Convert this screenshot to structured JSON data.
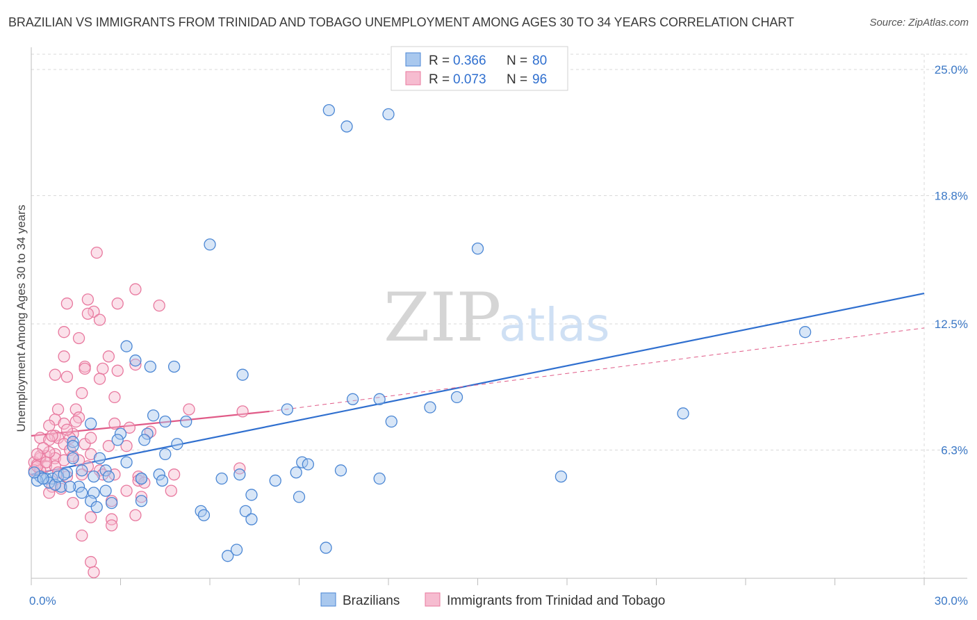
{
  "title": "BRAZILIAN VS IMMIGRANTS FROM TRINIDAD AND TOBAGO UNEMPLOYMENT AMONG AGES 30 TO 34 YEARS CORRELATION CHART",
  "source": "Source: ZipAtlas.com",
  "watermark": {
    "zip": "ZIP",
    "atlas": "atlas"
  },
  "legend_stats": [
    {
      "r_label": "R =",
      "r_value": "0.366",
      "n_label": "N =",
      "n_value": "80"
    },
    {
      "r_label": "R =",
      "r_value": "0.073",
      "n_label": "N =",
      "n_value": "96"
    }
  ],
  "colors": {
    "blue_fill": "#a9c8ee",
    "blue_stroke": "#4a86d4",
    "blue_line": "#2f6fcf",
    "pink_fill": "#f6bcd0",
    "pink_stroke": "#e8789e",
    "pink_line": "#e05a87",
    "grid": "#d9d9d9",
    "tick_text": "#3b78c6"
  },
  "chart_data": {
    "type": "scatter",
    "title": "BRAZILIAN VS IMMIGRANTS FROM TRINIDAD AND TOBAGO UNEMPLOYMENT AMONG AGES 30 TO 34 YEARS CORRELATION CHART",
    "xlabel": "",
    "ylabel": "Unemployment Among Ages 30 to 34 years",
    "xlim": [
      0,
      30
    ],
    "ylim": [
      0,
      25.75
    ],
    "x_tick_labels": [
      {
        "value": 0,
        "label": "0.0%"
      },
      {
        "value": 30,
        "label": "30.0%"
      }
    ],
    "y_tick_labels": [
      {
        "value": 6.3,
        "label": "6.3%"
      },
      {
        "value": 12.5,
        "label": "12.5%"
      },
      {
        "value": 18.8,
        "label": "18.8%"
      },
      {
        "value": 25.0,
        "label": "25.0%"
      }
    ],
    "grid": true,
    "legend_position": "top-center",
    "series": [
      {
        "name": "Brazilians",
        "color": "#a9c8ee",
        "trend": {
          "x0": 0,
          "y0": 5.1,
          "x1": 30,
          "y1": 14.0,
          "style": "solid"
        },
        "points": [
          [
            10,
            23.0
          ],
          [
            10.6,
            22.2
          ],
          [
            12,
            22.8
          ],
          [
            6,
            16.4
          ],
          [
            15,
            16.2
          ],
          [
            26,
            12.1
          ],
          [
            3.2,
            11.4
          ],
          [
            3.5,
            10.7
          ],
          [
            4,
            10.4
          ],
          [
            4.8,
            10.4
          ],
          [
            7.1,
            10.0
          ],
          [
            8.6,
            8.3
          ],
          [
            10.8,
            8.8
          ],
          [
            11.7,
            8.8
          ],
          [
            13.4,
            8.4
          ],
          [
            14.3,
            8.9
          ],
          [
            21.9,
            8.1
          ],
          [
            2,
            7.6
          ],
          [
            4.1,
            8.0
          ],
          [
            4.5,
            7.7
          ],
          [
            5.2,
            7.7
          ],
          [
            12.1,
            7.7
          ],
          [
            3,
            7.1
          ],
          [
            3.9,
            7.1
          ],
          [
            2.9,
            6.8
          ],
          [
            3.8,
            6.8
          ],
          [
            4.9,
            6.6
          ],
          [
            1.4,
            6.7
          ],
          [
            1.4,
            6.5
          ],
          [
            4.5,
            6.1
          ],
          [
            2.3,
            5.9
          ],
          [
            1.4,
            5.9
          ],
          [
            3.2,
            5.7
          ],
          [
            9.1,
            5.7
          ],
          [
            9.3,
            5.6
          ],
          [
            2.5,
            5.3
          ],
          [
            1.7,
            5.3
          ],
          [
            1.2,
            5.2
          ],
          [
            0.3,
            5.0
          ],
          [
            0.5,
            4.9
          ],
          [
            0.7,
            4.9
          ],
          [
            0.2,
            4.8
          ],
          [
            0.6,
            4.7
          ],
          [
            2.1,
            5.0
          ],
          [
            3.7,
            4.9
          ],
          [
            4.3,
            5.1
          ],
          [
            4.4,
            4.8
          ],
          [
            6.4,
            4.9
          ],
          [
            7.0,
            5.1
          ],
          [
            8.2,
            4.8
          ],
          [
            8.9,
            5.2
          ],
          [
            10.4,
            5.3
          ],
          [
            11.7,
            4.9
          ],
          [
            17.8,
            5.0
          ],
          [
            1,
            4.5
          ],
          [
            1.6,
            4.5
          ],
          [
            1.7,
            4.2
          ],
          [
            2.1,
            4.2
          ],
          [
            2.5,
            4.3
          ],
          [
            3.7,
            3.8
          ],
          [
            2,
            3.8
          ],
          [
            2.7,
            3.7
          ],
          [
            7.4,
            4.1
          ],
          [
            9.0,
            4.0
          ],
          [
            5.7,
            3.3
          ],
          [
            5.8,
            3.1
          ],
          [
            7.2,
            3.3
          ],
          [
            7.4,
            2.9
          ],
          [
            6.6,
            1.1
          ],
          [
            6.9,
            1.4
          ],
          [
            9.9,
            1.5
          ],
          [
            0.8,
            4.6
          ],
          [
            1.3,
            4.5
          ],
          [
            2.2,
            3.5
          ],
          [
            3.7,
            4.9
          ],
          [
            0.4,
            4.9
          ],
          [
            0.9,
            5.0
          ],
          [
            1.1,
            5.1
          ],
          [
            0.1,
            5.2
          ],
          [
            2.6,
            5.0
          ]
        ]
      },
      {
        "name": "Immigrants from Trinidad and Tobago",
        "color": "#f6bcd0",
        "trend": {
          "x0": 0,
          "y0": 7.0,
          "x1": 8.0,
          "y1": 8.2,
          "style": "solid",
          "ext_x1": 30,
          "ext_y1": 12.3,
          "ext_style": "dashed"
        },
        "points": [
          [
            2.2,
            16.0
          ],
          [
            3.5,
            14.2
          ],
          [
            4.3,
            13.4
          ],
          [
            1.9,
            13.7
          ],
          [
            1.2,
            13.5
          ],
          [
            2.9,
            13.5
          ],
          [
            2.1,
            13.1
          ],
          [
            1.9,
            13.0
          ],
          [
            2.3,
            12.7
          ],
          [
            1.1,
            12.1
          ],
          [
            1.6,
            11.8
          ],
          [
            1.1,
            10.9
          ],
          [
            2.6,
            10.9
          ],
          [
            1.8,
            10.4
          ],
          [
            1.8,
            10.3
          ],
          [
            2.4,
            10.3
          ],
          [
            2.9,
            10.2
          ],
          [
            3.5,
            10.5
          ],
          [
            0.8,
            10.0
          ],
          [
            1.2,
            9.9
          ],
          [
            2.3,
            9.8
          ],
          [
            1.7,
            9.1
          ],
          [
            2.8,
            8.9
          ],
          [
            5.3,
            8.3
          ],
          [
            0.9,
            8.3
          ],
          [
            1.5,
            8.3
          ],
          [
            7.1,
            8.2
          ],
          [
            1.6,
            7.9
          ],
          [
            0.8,
            7.8
          ],
          [
            1.5,
            7.7
          ],
          [
            2.8,
            7.6
          ],
          [
            1.1,
            7.6
          ],
          [
            0.6,
            7.5
          ],
          [
            3.3,
            7.4
          ],
          [
            4.0,
            7.2
          ],
          [
            1.4,
            7.1
          ],
          [
            0.8,
            7.0
          ],
          [
            0.9,
            6.9
          ],
          [
            1.3,
            6.9
          ],
          [
            0.3,
            6.9
          ],
          [
            0.6,
            6.8
          ],
          [
            1.1,
            6.6
          ],
          [
            1.8,
            6.6
          ],
          [
            2.0,
            6.9
          ],
          [
            2.6,
            6.5
          ],
          [
            3.2,
            6.5
          ],
          [
            1.3,
            6.3
          ],
          [
            0.8,
            6.1
          ],
          [
            2.0,
            6.1
          ],
          [
            0.5,
            6.0
          ],
          [
            0.3,
            5.9
          ],
          [
            0.8,
            5.9
          ],
          [
            1.1,
            5.8
          ],
          [
            1.6,
            5.8
          ],
          [
            0.1,
            5.7
          ],
          [
            0.2,
            5.6
          ],
          [
            0.5,
            5.5
          ],
          [
            0.8,
            5.5
          ],
          [
            1.9,
            5.5
          ],
          [
            7.0,
            5.4
          ],
          [
            0.1,
            5.3
          ],
          [
            0.3,
            5.3
          ],
          [
            2.3,
            5.3
          ],
          [
            2.4,
            5.1
          ],
          [
            2.8,
            5.1
          ],
          [
            3.6,
            5.0
          ],
          [
            4.8,
            5.1
          ],
          [
            1.7,
            5.1
          ],
          [
            3.6,
            4.8
          ],
          [
            3.8,
            4.7
          ],
          [
            0.7,
            4.5
          ],
          [
            1.0,
            4.4
          ],
          [
            3.2,
            4.3
          ],
          [
            4.7,
            4.3
          ],
          [
            0.6,
            4.2
          ],
          [
            3.7,
            4.0
          ],
          [
            1.4,
            3.7
          ],
          [
            2.7,
            3.8
          ],
          [
            2.0,
            3.0
          ],
          [
            2.7,
            2.9
          ],
          [
            3.5,
            3.1
          ],
          [
            2.7,
            2.6
          ],
          [
            1.7,
            2.1
          ],
          [
            2.0,
            0.8
          ],
          [
            2.1,
            0.3
          ],
          [
            0.3,
            6.0
          ],
          [
            0.6,
            6.2
          ],
          [
            1.2,
            7.3
          ],
          [
            0.2,
            5.5
          ],
          [
            0.5,
            5.7
          ],
          [
            1.4,
            6.0
          ],
          [
            0.9,
            5.2
          ],
          [
            0.4,
            6.4
          ],
          [
            0.7,
            7.0
          ],
          [
            1.2,
            5.0
          ],
          [
            0.2,
            6.1
          ]
        ]
      }
    ]
  }
}
